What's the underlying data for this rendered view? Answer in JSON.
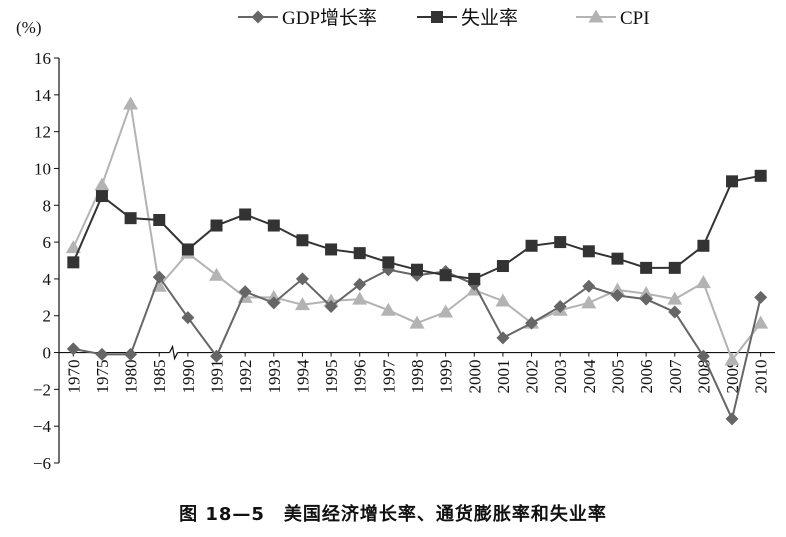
{
  "chart_data": {
    "type": "line",
    "title": "",
    "ylabel": "(%)",
    "xlabel": "",
    "ylim": [
      -6,
      16
    ],
    "yticks": [
      -6,
      -4,
      -2,
      0,
      2,
      4,
      6,
      8,
      10,
      12,
      14,
      16
    ],
    "categories": [
      "1970",
      "1975",
      "1980",
      "1985",
      "1990",
      "1991",
      "1992",
      "1993",
      "1994",
      "1995",
      "1996",
      "1997",
      "1998",
      "1999",
      "2000",
      "2001",
      "2002",
      "2003",
      "2004",
      "2005",
      "2006",
      "2007",
      "2008",
      "2009",
      "2010"
    ],
    "axis_break_after": "1985",
    "legend_position": "top",
    "grid": false,
    "series": [
      {
        "name": "GDP增长率",
        "marker": "diamond",
        "color": "#666666",
        "values": [
          0.2,
          -0.1,
          -0.1,
          4.1,
          1.9,
          -0.2,
          3.3,
          2.7,
          4.0,
          2.5,
          3.7,
          4.5,
          4.2,
          4.4,
          3.7,
          0.8,
          1.6,
          2.5,
          3.6,
          3.1,
          2.9,
          2.2,
          -0.2,
          -3.6,
          3.0
        ]
      },
      {
        "name": "失业率",
        "marker": "square",
        "color": "#333333",
        "values": [
          4.9,
          8.5,
          7.3,
          7.2,
          5.6,
          6.9,
          7.5,
          6.9,
          6.1,
          5.6,
          5.4,
          4.9,
          4.5,
          4.2,
          4.0,
          4.7,
          5.8,
          6.0,
          5.5,
          5.1,
          4.6,
          4.6,
          5.8,
          9.3,
          9.6
        ]
      },
      {
        "name": "CPI",
        "marker": "triangle",
        "color": "#b3b3b3",
        "values": [
          5.7,
          9.1,
          13.5,
          3.6,
          5.4,
          4.2,
          3.0,
          3.0,
          2.6,
          2.8,
          2.9,
          2.3,
          1.6,
          2.2,
          3.4,
          2.8,
          1.6,
          2.3,
          2.7,
          3.4,
          3.2,
          2.9,
          3.8,
          -0.4,
          1.6
        ]
      }
    ]
  },
  "caption": "图 18—5　美国经济增长率、通货膨胀率和失业率"
}
